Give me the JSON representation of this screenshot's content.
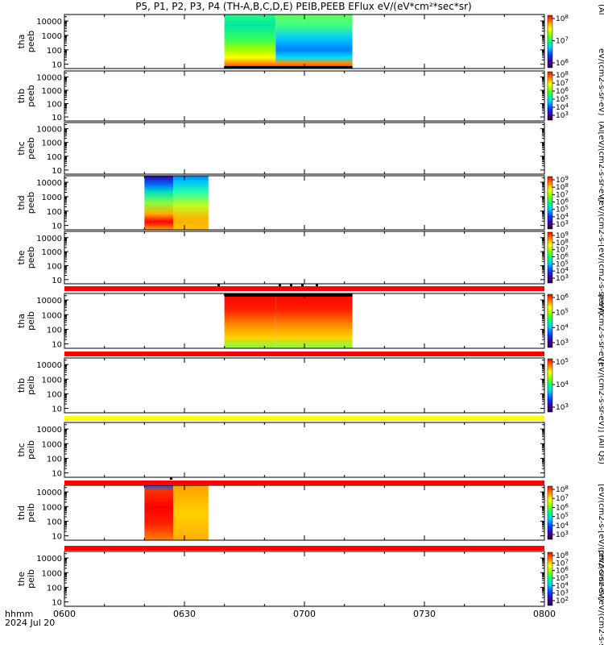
{
  "title": "P5, P1, P2, P3, P4 (TH-A,B,C,D,E) PEIB,PEEB EFlux eV/(eV*cm²*sec*sr)",
  "x_axis": {
    "label_line1": "hhmm",
    "label_line2": "2024 Jul 20",
    "ticks": [
      "0600",
      "0630",
      "0700",
      "0730",
      "0800"
    ]
  },
  "colorbar_labels": {
    "top_right": "(Al",
    "eflux_units_a": "eV/(cm2-s-sr-eV)",
    "eflux_units_b": "[eV/(cm2-s-[eV/(cm2-s-sr-eV)",
    "eflux_units_c": "(Al[eV/(cm2-s-sr-eV)",
    "eflux_units_d": "[eV/(cm2-s-sr-eV)",
    "eflux_units_e": "[eV/(cm2-s-sr-eV)] (All Qs)",
    "eflux_units_f": "[eV/(cm2-s-[eV/(cm2-s-sr-eV)",
    "eflux_units_g": "[eV/(cm2-s-[eV/(cm2-s-sr-eV)"
  },
  "chart_data": {
    "type": "heatmap",
    "x_unit": "hhmm",
    "x_range": [
      "0600",
      "0800"
    ],
    "y_scale": "log",
    "y_ticks": [
      "10",
      "100",
      "1000",
      "10000"
    ],
    "panels": [
      {
        "name": "tha peeb",
        "label1": "tha",
        "label2": "peeb",
        "colorbar_ticks": [
          "10⁶",
          "10⁷",
          "10⁸"
        ],
        "colorbar_exponents": [
          "6",
          "7",
          "8"
        ],
        "data_intervals": [
          [
            "0640",
            "0712"
          ]
        ]
      },
      {
        "name": "thb peeb",
        "label1": "thb",
        "label2": "peeb",
        "colorbar_ticks": [
          "10³",
          "10⁴",
          "10⁵",
          "10⁶",
          "10⁷",
          "10⁸"
        ],
        "colorbar_exponents": [
          "3",
          "4",
          "5",
          "6",
          "7",
          "8"
        ],
        "data_intervals": []
      },
      {
        "name": "thc peeb",
        "label1": "thc",
        "label2": "peeb",
        "colorbar_ticks": [],
        "colorbar_exponents": [],
        "data_intervals": []
      },
      {
        "name": "thd peeb",
        "label1": "thd",
        "label2": "peeb",
        "colorbar_ticks": [
          "10³",
          "10⁴",
          "10⁵",
          "10⁶",
          "10⁷",
          "10⁸",
          "10⁹"
        ],
        "colorbar_exponents": [
          "3",
          "4",
          "5",
          "6",
          "7",
          "8",
          "9"
        ],
        "data_intervals": [
          [
            "0620",
            "0636"
          ]
        ]
      },
      {
        "name": "the peeb",
        "label1": "the",
        "label2": "peeb",
        "colorbar_ticks": [
          "10³",
          "10⁴",
          "10⁵",
          "10⁶",
          "10⁷",
          "10⁸",
          "10⁹"
        ],
        "colorbar_exponents": [
          "3",
          "4",
          "5",
          "6",
          "7",
          "8",
          "9"
        ],
        "data_intervals": []
      },
      {
        "name": "tha peib",
        "label1": "tha",
        "label2": "peib",
        "colorbar_ticks": [
          "10³",
          "10⁴",
          "10⁵",
          "10⁶"
        ],
        "colorbar_exponents": [
          "3",
          "4",
          "5",
          "6"
        ],
        "data_intervals": [
          [
            "0640",
            "0712"
          ]
        ]
      },
      {
        "name": "thb peib",
        "label1": "thb",
        "label2": "peib",
        "colorbar_ticks": [
          "10³",
          "10⁴",
          "10⁵"
        ],
        "colorbar_exponents": [
          "3",
          "4",
          "5"
        ],
        "data_intervals": []
      },
      {
        "name": "thc peib",
        "label1": "thc",
        "label2": "peib",
        "colorbar_ticks": [],
        "colorbar_exponents": [],
        "data_intervals": []
      },
      {
        "name": "thd peib",
        "label1": "thd",
        "label2": "peib",
        "colorbar_ticks": [
          "10³",
          "10⁴",
          "10⁵",
          "10⁶",
          "10⁷",
          "10⁸"
        ],
        "colorbar_exponents": [
          "3",
          "4",
          "5",
          "6",
          "7",
          "8"
        ],
        "data_intervals": [
          [
            "0620",
            "0636"
          ]
        ]
      },
      {
        "name": "the peib",
        "label1": "the",
        "label2": "peib",
        "colorbar_ticks": [
          "10²",
          "10³",
          "10⁴",
          "10⁵",
          "10⁶",
          "10⁷",
          "10⁸"
        ],
        "colorbar_exponents": [
          "2",
          "3",
          "4",
          "5",
          "6",
          "7",
          "8"
        ],
        "data_intervals": []
      }
    ],
    "status_bars": [
      {
        "after_panel": 4,
        "color": "#ff0000"
      },
      {
        "after_panel": 5,
        "color": "#ff0000"
      },
      {
        "after_panel": 6,
        "color": "#ffff00"
      },
      {
        "after_panel": 7,
        "color": "#ff0000"
      },
      {
        "after_panel": 8,
        "color": "#ff0000"
      }
    ]
  }
}
